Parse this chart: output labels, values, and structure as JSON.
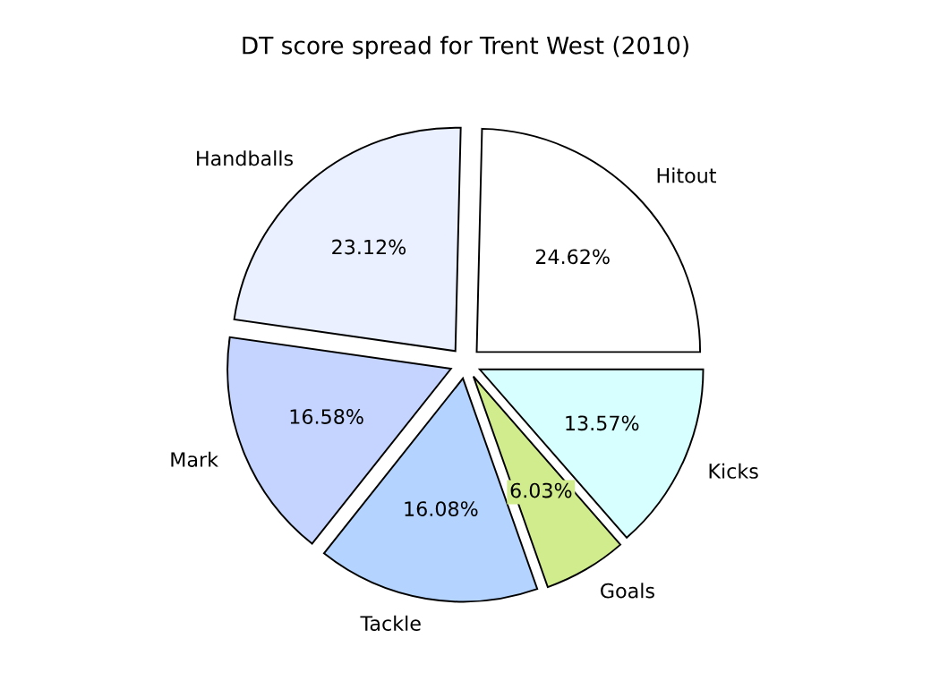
{
  "chart_data": {
    "type": "pie",
    "title": "DT score spread for Trent West (2010)",
    "categories": [
      "Hitout",
      "Handballs",
      "Mark",
      "Tackle",
      "Goals",
      "Kicks"
    ],
    "values": [
      24.62,
      23.12,
      16.58,
      16.08,
      6.03,
      13.57
    ],
    "value_labels": [
      "24.62%",
      "23.12%",
      "16.58%",
      "16.08%",
      "6.03%",
      "13.57%"
    ],
    "colors": [
      "#ffffff",
      "#eaf0ff",
      "#c4d4ff",
      "#b4d4ff",
      "#d0ec8c",
      "#d8ffff"
    ],
    "legend": false
  }
}
